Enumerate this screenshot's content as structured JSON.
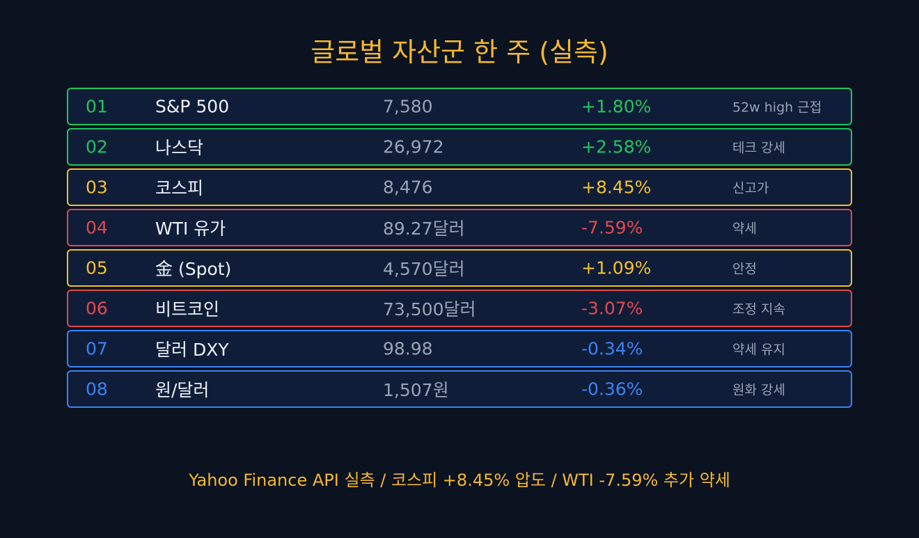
{
  "header": {
    "title": "글로벌 자산군 한 주 (실측)"
  },
  "table": {
    "rows": [
      {
        "rank": "01",
        "name": "S&P 500",
        "price": "7,580",
        "change": "+1.80%",
        "note": "52w high 근접",
        "color": "#22c55e"
      },
      {
        "rank": "02",
        "name": "나스닥",
        "price": "26,972",
        "change": "+2.58%",
        "note": "테크 강세",
        "color": "#22c55e"
      },
      {
        "rank": "03",
        "name": "코스피",
        "price": "8,476",
        "change": "+8.45%",
        "note": "신고가",
        "color": "#f5c02e"
      },
      {
        "rank": "04",
        "name": "WTI 유가",
        "price": "89.27달러",
        "change": "-7.59%",
        "note": "약세",
        "color": "#e5484d"
      },
      {
        "rank": "05",
        "name": "金 (Spot)",
        "price": "4,570달러",
        "change": "+1.09%",
        "note": "안정",
        "color": "#f5c02e"
      },
      {
        "rank": "06",
        "name": "비트코인",
        "price": "73,500달러",
        "change": "-3.07%",
        "note": "조정 지속",
        "color": "#e5484d"
      },
      {
        "rank": "07",
        "name": "달러 DXY",
        "price": "98.98",
        "change": "-0.34%",
        "note": "약세 유지",
        "color": "#3b82f6"
      },
      {
        "rank": "08",
        "name": "원/달러",
        "price": "1,507원",
        "change": "-0.36%",
        "note": "원화 강세",
        "color": "#3b82f6"
      }
    ]
  },
  "footer": {
    "text": "Yahoo Finance API 실측 / 코스피 +8.45% 압도 / WTI -7.59% 추가 약세"
  }
}
